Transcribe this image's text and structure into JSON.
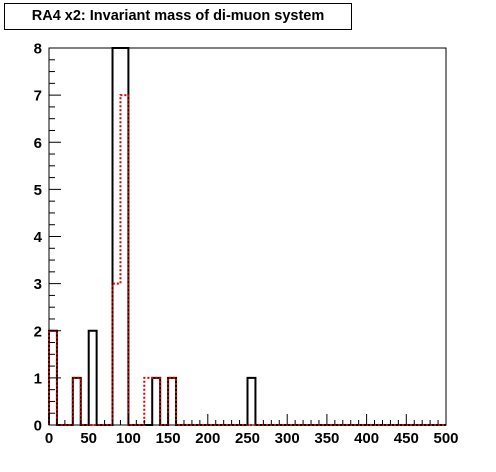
{
  "chart_data": {
    "type": "histogram",
    "title": "RA4 x2: Invariant mass of di-muon system",
    "xlim": [
      0,
      500
    ],
    "ylim": [
      0,
      8
    ],
    "bin_width": 10,
    "x_ticks": [
      0,
      50,
      100,
      150,
      200,
      250,
      300,
      350,
      400,
      450,
      500
    ],
    "y_ticks": [
      0,
      1,
      2,
      3,
      4,
      5,
      6,
      7,
      8
    ],
    "series": [
      {
        "style": "solid",
        "color": "#000000",
        "bin_low_edges": [
          0,
          10,
          20,
          30,
          40,
          50,
          60,
          70,
          80,
          90,
          100,
          110,
          120,
          130,
          140,
          150,
          160,
          170,
          180,
          190,
          200,
          210,
          220,
          230,
          240,
          250,
          260,
          270,
          280,
          290,
          300,
          310,
          320,
          330,
          340,
          350,
          360,
          370,
          380,
          390,
          400,
          410,
          420,
          430,
          440,
          450,
          460,
          470,
          480,
          490
        ],
        "values": [
          2,
          0,
          0,
          1,
          0,
          2,
          0,
          0,
          8,
          8,
          0,
          0,
          0,
          1,
          0,
          1,
          0,
          0,
          0,
          0,
          0,
          0,
          0,
          0,
          0,
          1,
          0,
          0,
          0,
          0,
          0,
          0,
          0,
          0,
          0,
          0,
          0,
          0,
          0,
          0,
          0,
          0,
          0,
          0,
          0,
          0,
          0,
          0,
          0,
          0
        ]
      },
      {
        "style": "dotted",
        "color": "#dd0000",
        "bin_low_edges": [
          0,
          10,
          20,
          30,
          40,
          50,
          60,
          70,
          80,
          90,
          100,
          110,
          120,
          130,
          140,
          150,
          160,
          170,
          180,
          190,
          200,
          210,
          220,
          230,
          240,
          250,
          260,
          270,
          280,
          290,
          300,
          310,
          320,
          330,
          340,
          350,
          360,
          370,
          380,
          390,
          400,
          410,
          420,
          430,
          440,
          450,
          460,
          470,
          480,
          490
        ],
        "values": [
          2,
          0,
          0,
          1,
          0,
          0,
          0,
          0,
          3,
          7,
          0,
          0,
          1,
          1,
          0,
          1,
          0,
          0,
          0,
          0,
          0,
          0,
          0,
          0,
          0,
          0,
          0,
          0,
          0,
          0,
          0,
          0,
          0,
          0,
          0,
          0,
          0,
          0,
          0,
          0,
          0,
          0,
          0,
          0,
          0,
          0,
          0,
          0,
          0,
          0
        ]
      }
    ]
  }
}
